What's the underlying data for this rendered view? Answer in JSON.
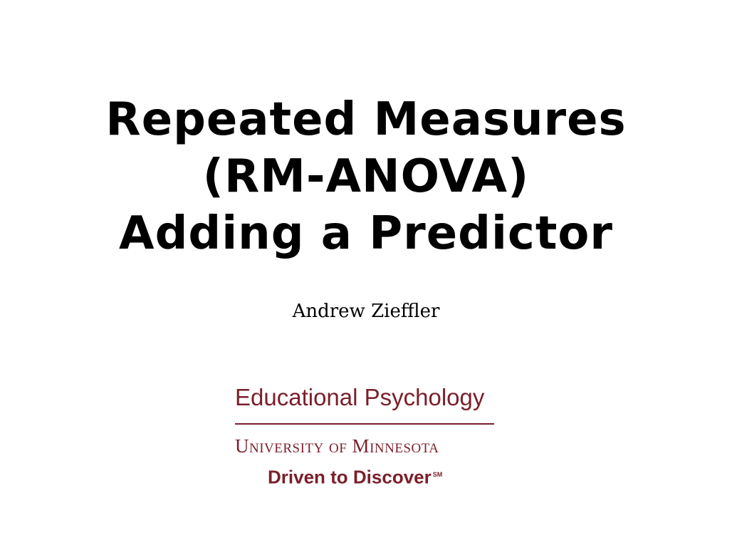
{
  "title": {
    "line1": "Repeated Measures",
    "line2": "(RM-ANOVA)",
    "line3": "Adding a Predictor"
  },
  "author": "Andrew Zieffler",
  "logo": {
    "department": "Educational Psychology",
    "university": "University of Minnesota",
    "tagline": "Driven to Discover",
    "service_mark": "SM",
    "color": "#7a1f2b"
  }
}
